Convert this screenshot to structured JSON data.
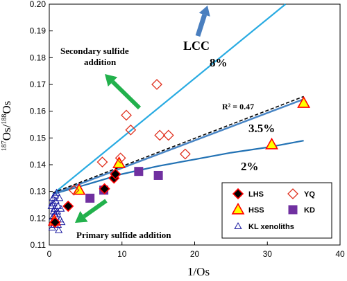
{
  "chart_data": {
    "type": "scatter",
    "xlabel": "1/Os",
    "ylabel": "¹⁸⁷Os/¹⁸⁸Os",
    "xlim": [
      0,
      40
    ],
    "ylim": [
      0.11,
      0.2
    ],
    "xticks": [
      "0",
      "10",
      "20",
      "30",
      "40"
    ],
    "yticks": [
      "0.11",
      "0.12",
      "0.13",
      "0.14",
      "0.15",
      "0.16",
      "0.17",
      "0.18",
      "0.19",
      "0.20"
    ],
    "grid": false,
    "legend_position": "bottom-right",
    "series": [
      {
        "name": "LHS",
        "marker": "diamond",
        "fill": "#000000",
        "stroke": "#ff0000",
        "x": [
          0.8,
          2.6,
          7.6,
          8.9,
          9.1
        ],
        "y": [
          0.1185,
          0.1245,
          0.131,
          0.135,
          0.1365
        ]
      },
      {
        "name": "YQ",
        "marker": "diamond",
        "fill": "none",
        "stroke": "#e0301e",
        "x": [
          3.4,
          7.3,
          9.8,
          10.6,
          11.2,
          14.8,
          15.2,
          16.4,
          18.7
        ],
        "y": [
          0.1305,
          0.141,
          0.1425,
          0.1585,
          0.153,
          0.17,
          0.151,
          0.151,
          0.144
        ]
      },
      {
        "name": "HSS",
        "marker": "triangle",
        "fill": "#ffff00",
        "stroke": "#ff0000",
        "x": [
          0.7,
          4.1,
          9.6,
          30.6,
          35.0
        ],
        "y": [
          0.119,
          0.1305,
          0.1405,
          0.1475,
          0.163
        ]
      },
      {
        "name": "KD",
        "marker": "square",
        "fill": "#7030a0",
        "stroke": "#7030a0",
        "x": [
          5.6,
          7.5,
          12.3,
          15.0
        ],
        "y": [
          0.1275,
          0.1305,
          0.1375,
          0.136
        ]
      },
      {
        "name": "KL xenoliths",
        "marker": "triangle",
        "fill": "none",
        "stroke": "#1a1aa0",
        "x": [
          0.4,
          0.7,
          1.0,
          1.3,
          0.5,
          0.8,
          1.1,
          1.5,
          0.3,
          0.6,
          0.9,
          1.2,
          1.6,
          0.5,
          0.8,
          1.0,
          1.4,
          0.6,
          0.9,
          1.2,
          0.4,
          0.7,
          1.1,
          1.7
        ],
        "y": [
          0.1165,
          0.1175,
          0.1185,
          0.1155,
          0.1205,
          0.1215,
          0.1225,
          0.1195,
          0.1245,
          0.1255,
          0.1265,
          0.1245,
          0.1235,
          0.1275,
          0.1285,
          0.1295,
          0.1275,
          0.1225,
          0.1205,
          0.1175,
          0.1255,
          0.1235,
          0.1215,
          0.1185
        ]
      }
    ],
    "mixing_lines": [
      {
        "label": "LCC",
        "x": [
          0.5,
          32.5
        ],
        "y": [
          0.129,
          0.2
        ]
      },
      {
        "label": "8%",
        "x": [
          0.5,
          32.5
        ],
        "y": [
          0.129,
          0.2
        ]
      },
      {
        "label": "3.5%",
        "x": [
          0.5,
          35.0
        ],
        "y": [
          0.129,
          0.1645
        ]
      },
      {
        "label": "2%",
        "x": [
          0.5,
          5,
          10,
          15,
          20,
          25,
          30,
          35
        ],
        "y": [
          0.129,
          0.1325,
          0.1365,
          0.1395,
          0.142,
          0.1445,
          0.1465,
          0.149
        ]
      }
    ],
    "regression": {
      "label": "R² = 0.47",
      "x": [
        0.5,
        35.0
      ],
      "y": [
        0.1295,
        0.1655
      ]
    },
    "annotations": {
      "secondary_line1": "Secondary sulfide",
      "secondary_line2": "addition",
      "primary": "Primary sulfide addition",
      "lcc": "LCC",
      "pct8": "8%",
      "pct35": "3.5%",
      "pct2": "2%",
      "r2": "R² = 0.47"
    },
    "colors": {
      "lcc_line": "#29abe2",
      "mix_35": "#4a86c5",
      "mix_2": "#2272b4",
      "regression": "#000000",
      "lcc_arrow": "#4a7fbf",
      "green_arrow": "#22b14c"
    }
  }
}
